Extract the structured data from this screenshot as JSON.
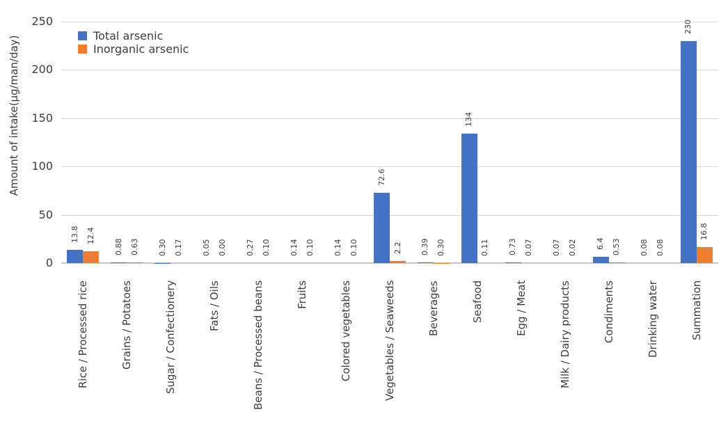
{
  "chart_data": {
    "type": "bar",
    "title": "",
    "xlabel": "",
    "ylabel": "Amount of intake(μg/man/day)",
    "ylim": [
      0,
      250
    ],
    "yticks": [
      0,
      50,
      100,
      150,
      200,
      250
    ],
    "grid": true,
    "legend_position": "top-left-inside",
    "categories": [
      "Rice / Processed rice",
      "Grains / Potatoes",
      "Sugar / Confectionery",
      "Fats / Oils",
      "Beans / Processed beans",
      "Fruits",
      "Colored vegetables",
      "Vegetables / Seaweeds",
      "Beverages",
      "Seafood",
      "Egg / Meat",
      "Milk / Dairy products",
      "Condiments",
      "Drinking water",
      "Summation"
    ],
    "series": [
      {
        "name": "Total arsenic",
        "color": "#4472C4",
        "values": [
          13.8,
          0.88,
          0.3,
          0.05,
          0.27,
          0.14,
          0.14,
          72.6,
          0.39,
          134,
          0.73,
          0.07,
          6.4,
          0.08,
          230
        ],
        "value_labels": [
          "13.8",
          "0.88",
          "0.30",
          "0.05",
          "0.27",
          "0.14",
          "0.14",
          "72.6",
          "0.39",
          "134",
          "0.73",
          "0.07",
          "6.4",
          "0.08",
          "230"
        ]
      },
      {
        "name": "Inorganic arsenic",
        "color": "#ED7D31",
        "values": [
          12.4,
          0.63,
          0.17,
          0.0,
          0.1,
          0.1,
          0.1,
          2.2,
          0.3,
          0.11,
          0.07,
          0.02,
          0.53,
          0.08,
          16.8
        ],
        "value_labels": [
          "12.4",
          "0.63",
          "0.17",
          "0.00",
          "0.10",
          "0.10",
          "0.10",
          "2.2",
          "0.30",
          "0.11",
          "0.07",
          "0.02",
          "0.53",
          "0.08",
          "16.8"
        ]
      }
    ],
    "colors": {
      "total_arsenic": "#4472C4",
      "inorganic_arsenic": "#ED7D31",
      "gridline": "#d7d7d7",
      "axis_baseline": "#c6c6c6",
      "text": "#3d3d3d"
    }
  }
}
